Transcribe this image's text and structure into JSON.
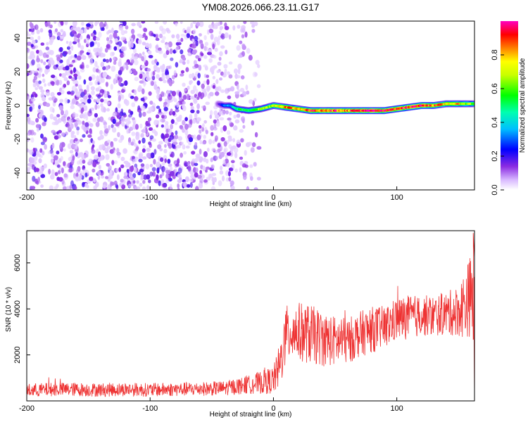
{
  "title": "YM08.2026.066.23.11.G17",
  "chart_data": [
    {
      "type": "heatmap",
      "xlabel": "Height of straight line (km)",
      "ylabel": "Frequency (Hz)",
      "xlim": [
        -200,
        163
      ],
      "ylim": [
        -50,
        50
      ],
      "x_ticks": [
        -200,
        -100,
        0,
        100
      ],
      "y_ticks": [
        -40,
        -20,
        0,
        20,
        40
      ],
      "colorbar": {
        "label": "Normalized spectral amplitude",
        "range": [
          0,
          1
        ],
        "ticks": [
          "0.0",
          "0.2",
          "0.4",
          "0.6",
          "0.8"
        ],
        "colormap": [
          "#ffffff",
          "#8a2be2",
          "#0000ff",
          "#00ffff",
          "#00ff00",
          "#ffff00",
          "#ff8000",
          "#ff0000",
          "#ff00ff"
        ]
      },
      "noise_region": {
        "x_range": [
          -200,
          -15
        ],
        "amplitude_range": [
          0.0,
          0.2
        ]
      },
      "ridge": {
        "x": [
          -45,
          -40,
          -35,
          -30,
          -20,
          -10,
          0,
          10,
          20,
          30,
          40,
          50,
          60,
          70,
          80,
          90,
          100,
          110,
          120,
          130,
          140,
          150,
          163
        ],
        "frequency": [
          1,
          0,
          0,
          -2,
          -3,
          -2,
          0,
          -1,
          -2,
          -3,
          -3,
          -3,
          -3,
          -3,
          -3,
          -3,
          -2,
          -1,
          0,
          0,
          1,
          1,
          1
        ],
        "peak_amplitude": [
          0.15,
          0.3,
          0.35,
          0.5,
          0.55,
          0.65,
          0.7,
          0.85,
          0.8,
          0.9,
          0.9,
          0.9,
          0.85,
          0.95,
          0.95,
          0.9,
          0.95,
          0.9,
          1.0,
          0.85,
          0.75,
          0.75,
          0.6
        ]
      }
    },
    {
      "type": "line",
      "xlabel": "Height of straight line (km)",
      "ylabel": "SNR (10 * v/v)",
      "xlim": [
        -200,
        163
      ],
      "ylim": [
        0,
        7400
      ],
      "x_ticks": [
        -200,
        -100,
        0,
        100
      ],
      "y_ticks": [
        2000,
        4000,
        6000
      ],
      "color": "#ee3333",
      "series": [
        {
          "x": [
            -200,
            -180,
            -160,
            -140,
            -120,
            -100,
            -80,
            -60,
            -40,
            -20,
            -10,
            0,
            5,
            10,
            15,
            20,
            30,
            40,
            50,
            60,
            70,
            80,
            90,
            100,
            110,
            120,
            130,
            140,
            150,
            155,
            160,
            163
          ],
          "mean": [
            450,
            500,
            500,
            480,
            500,
            480,
            500,
            520,
            550,
            700,
            800,
            900,
            1500,
            2800,
            3100,
            3000,
            2900,
            2700,
            2600,
            2600,
            2900,
            3100,
            3200,
            3550,
            3650,
            3700,
            3700,
            3800,
            3900,
            4200,
            4600,
            3900
          ],
          "spread": [
            300,
            300,
            300,
            300,
            300,
            300,
            300,
            300,
            320,
            400,
            500,
            600,
            1000,
            1300,
            1300,
            1300,
            1300,
            1200,
            1100,
            1000,
            1000,
            1000,
            950,
            950,
            950,
            900,
            900,
            950,
            1100,
            1500,
            1800,
            2500
          ],
          "max": 7300
        }
      ]
    }
  ]
}
